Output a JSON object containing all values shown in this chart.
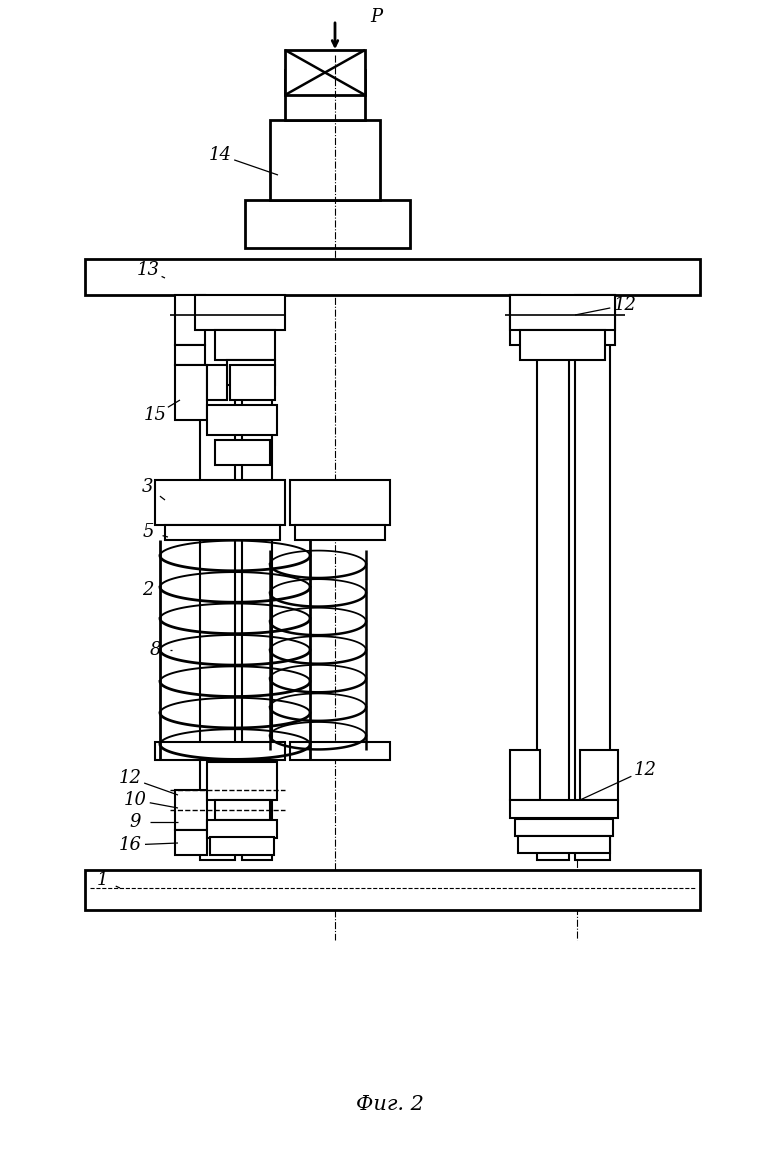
{
  "title": "Фиг. 2",
  "bg_color": "#ffffff",
  "fig_width": 7.8,
  "fig_height": 11.54
}
